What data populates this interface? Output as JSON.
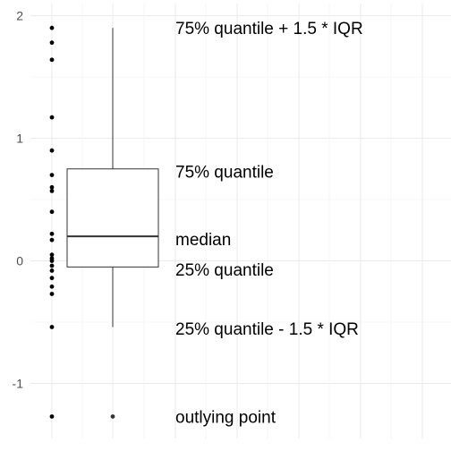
{
  "chart_data": {
    "type": "boxplot",
    "title": "",
    "xlabel": "",
    "ylabel": "",
    "ylim": [
      -1.4,
      2.1
    ],
    "y_ticks": [
      2,
      1,
      0,
      -1
    ],
    "y_tick_labels": [
      "2",
      "1",
      "0",
      "-1"
    ],
    "grid": true,
    "raw_points": [
      1.9,
      1.78,
      1.64,
      1.17,
      0.9,
      0.7,
      0.6,
      0.57,
      0.4,
      0.22,
      0.17,
      0.05,
      0.02,
      0.0,
      -0.04,
      -0.08,
      -0.14,
      -0.21,
      -0.27,
      -0.54,
      -1.27
    ],
    "box": {
      "q1": -0.05,
      "median": 0.2,
      "q3": 0.75,
      "whisker_low": -0.54,
      "whisker_high": 1.9,
      "outliers": [
        -1.27
      ]
    },
    "annotations": [
      {
        "text": "75% quantile + 1.5 * IQR",
        "y": 1.9
      },
      {
        "text": "75% quantile",
        "y": 0.73
      },
      {
        "text": "median",
        "y": 0.18
      },
      {
        "text": "25% quantile",
        "y": -0.07
      },
      {
        "text": "25% quantile - 1.5 * IQR",
        "y": -0.55
      },
      {
        "text": "outlying point",
        "y": -1.27
      }
    ]
  }
}
